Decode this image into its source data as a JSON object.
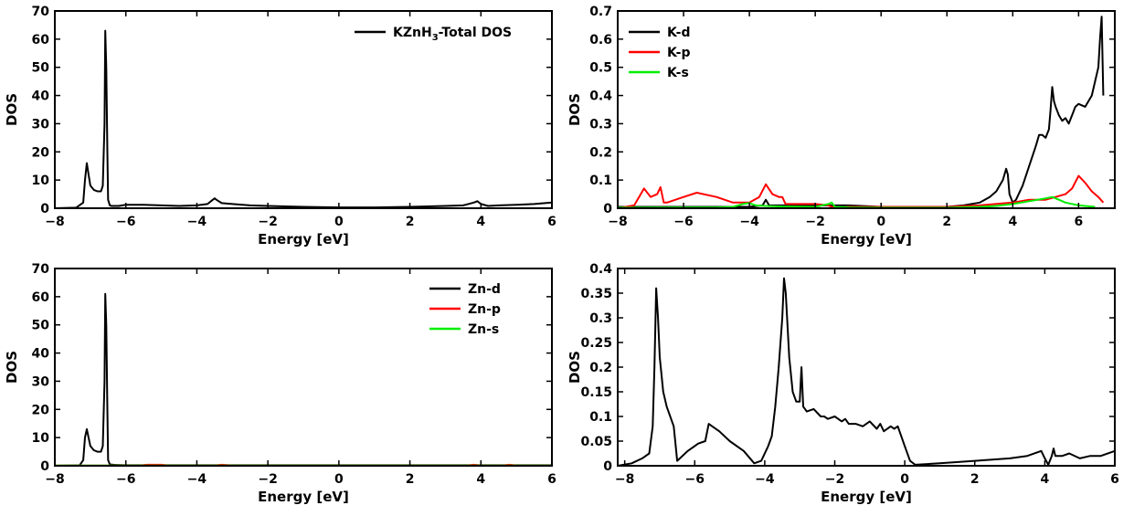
{
  "chart_data": [
    {
      "type": "line",
      "xlabel": "Energy [eV]",
      "ylabel": "DOS",
      "xlim": [
        -8,
        6
      ],
      "ylim": [
        0,
        70
      ],
      "xticks": [
        -8,
        -6,
        -4,
        -2,
        0,
        2,
        4,
        6
      ],
      "yticks": [
        0,
        10,
        20,
        30,
        40,
        50,
        60,
        70
      ],
      "legend_position": "top-right",
      "series": [
        {
          "name": "KZnH3-Total DOS",
          "color": "#000000",
          "x": [
            -8,
            -7.4,
            -7.2,
            -7.15,
            -7.1,
            -7.05,
            -7.0,
            -6.9,
            -6.8,
            -6.7,
            -6.65,
            -6.6,
            -6.58,
            -6.55,
            -6.52,
            -6.5,
            -6.45,
            -6.4,
            -6.2,
            -6.0,
            -5.5,
            -5.0,
            -4.5,
            -4.0,
            -3.7,
            -3.55,
            -3.5,
            -3.45,
            -3.3,
            -3.0,
            -2.5,
            -2.0,
            -1.0,
            0.0,
            1.0,
            2.0,
            3.0,
            3.5,
            3.8,
            3.9,
            4.0,
            4.2,
            4.5,
            5.0,
            5.5,
            6.0
          ],
          "y": [
            0,
            0.2,
            2,
            10,
            16,
            12,
            8,
            6.5,
            6,
            6,
            8,
            30,
            63,
            50,
            20,
            3,
            1,
            0.8,
            0.8,
            1.2,
            1.2,
            1.0,
            0.8,
            1.0,
            1.5,
            3,
            3.5,
            3,
            1.8,
            1.5,
            1.0,
            0.8,
            0.5,
            0.3,
            0.3,
            0.5,
            0.8,
            1.0,
            2.0,
            2.5,
            1.5,
            0.8,
            1.0,
            1.2,
            1.5,
            2.0
          ]
        }
      ]
    },
    {
      "type": "line",
      "xlabel": "Energy [eV]",
      "ylabel": "DOS",
      "xlim": [
        -8,
        7.1
      ],
      "ylim": [
        0,
        0.7
      ],
      "xticks": [
        -8,
        -6,
        -4,
        -2,
        0,
        2,
        4,
        6
      ],
      "yticks": [
        0,
        0.1,
        0.2,
        0.3,
        0.4,
        0.5,
        0.6,
        0.7
      ],
      "legend_position": "top-left",
      "series": [
        {
          "name": "K-d",
          "color": "#000000",
          "x": [
            -8,
            -6,
            -4,
            -3.6,
            -3.5,
            -3.4,
            -3,
            -2,
            -1,
            0,
            1,
            2,
            2.5,
            3,
            3.3,
            3.5,
            3.7,
            3.8,
            3.85,
            3.9,
            4.0,
            4.1,
            4.3,
            4.5,
            4.7,
            4.8,
            4.9,
            5.0,
            5.1,
            5.15,
            5.2,
            5.25,
            5.3,
            5.4,
            5.5,
            5.6,
            5.7,
            5.8,
            5.9,
            6.0,
            6.2,
            6.4,
            6.5,
            6.6,
            6.65,
            6.7,
            6.75
          ],
          "y": [
            0.005,
            0.005,
            0.005,
            0.01,
            0.03,
            0.01,
            0.01,
            0.01,
            0.01,
            0.005,
            0.005,
            0.005,
            0.01,
            0.02,
            0.04,
            0.06,
            0.1,
            0.14,
            0.12,
            0.05,
            0.02,
            0.03,
            0.08,
            0.15,
            0.22,
            0.26,
            0.26,
            0.25,
            0.28,
            0.35,
            0.43,
            0.38,
            0.36,
            0.33,
            0.31,
            0.32,
            0.3,
            0.33,
            0.36,
            0.37,
            0.36,
            0.4,
            0.45,
            0.5,
            0.6,
            0.68,
            0.4
          ]
        },
        {
          "name": "K-p",
          "color": "#ff0000",
          "x": [
            -8,
            -7.5,
            -7.3,
            -7.2,
            -7.0,
            -6.8,
            -6.7,
            -6.6,
            -6.5,
            -6.0,
            -5.6,
            -5.0,
            -4.5,
            -4.0,
            -3.7,
            -3.5,
            -3.3,
            -3.1,
            -3.0,
            -2.9,
            -2.5,
            -2.0,
            -1.6,
            -1.4,
            -1.0,
            0.0,
            1.0,
            2.0,
            3.0,
            4.0,
            4.5,
            5.0,
            5.3,
            5.6,
            5.8,
            6.0,
            6.2,
            6.4,
            6.6,
            6.75
          ],
          "y": [
            0.0,
            0.01,
            0.05,
            0.07,
            0.04,
            0.05,
            0.075,
            0.02,
            0.02,
            0.04,
            0.055,
            0.04,
            0.02,
            0.02,
            0.04,
            0.085,
            0.05,
            0.04,
            0.04,
            0.015,
            0.015,
            0.015,
            0.01,
            0.0,
            0.005,
            0.005,
            0.005,
            0.005,
            0.01,
            0.02,
            0.03,
            0.03,
            0.04,
            0.05,
            0.07,
            0.115,
            0.09,
            0.06,
            0.04,
            0.02
          ]
        },
        {
          "name": "K-s",
          "color": "#00ee00",
          "x": [
            -8,
            -6,
            -5,
            -4.5,
            -4.2,
            -4.0,
            -3.8,
            -3.5,
            -3.0,
            -2.0,
            -1.6,
            -1.5,
            -1.4,
            -1.0,
            0.0,
            1.0,
            2.0,
            3.0,
            3.5,
            4.0,
            4.5,
            5.0,
            5.2,
            5.4,
            5.6,
            6.0,
            6.5
          ],
          "y": [
            0.002,
            0.003,
            0.003,
            0.005,
            0.015,
            0.018,
            0.01,
            0.008,
            0.006,
            0.005,
            0.015,
            0.02,
            0.005,
            0.003,
            0.002,
            0.002,
            0.002,
            0.005,
            0.008,
            0.015,
            0.025,
            0.035,
            0.04,
            0.03,
            0.02,
            0.01,
            0.005
          ]
        }
      ]
    },
    {
      "type": "line",
      "xlabel": "Energy [eV]",
      "ylabel": "DOS",
      "xlim": [
        -8,
        6
      ],
      "ylim": [
        0,
        70
      ],
      "xticks": [
        -8,
        -6,
        -4,
        -2,
        0,
        2,
        4,
        6
      ],
      "yticks": [
        0,
        10,
        20,
        30,
        40,
        50,
        60,
        70
      ],
      "legend_position": "top-right",
      "series": [
        {
          "name": "Zn-d",
          "color": "#000000",
          "x": [
            -8,
            -7.3,
            -7.2,
            -7.15,
            -7.1,
            -7.05,
            -7.0,
            -6.9,
            -6.8,
            -6.7,
            -6.65,
            -6.6,
            -6.58,
            -6.55,
            -6.52,
            -6.5,
            -6.45,
            -6.3,
            -6.0,
            6.0
          ],
          "y": [
            0,
            0.2,
            2,
            10,
            13,
            10,
            7,
            5.5,
            5,
            5,
            7,
            30,
            61,
            50,
            20,
            2,
            0.5,
            0.3,
            0.2,
            0.2
          ]
        },
        {
          "name": "Zn-p",
          "color": "#ff0000",
          "x": [
            -8,
            -5.6,
            -5.4,
            -5.0,
            -4.8,
            -3.5,
            -3.3,
            -3.0,
            3.6,
            3.8,
            4.0,
            4.6,
            4.8,
            5.0,
            6.0
          ],
          "y": [
            0.1,
            0.1,
            0.35,
            0.35,
            0.1,
            0.1,
            0.35,
            0.1,
            0.1,
            0.35,
            0.1,
            0.1,
            0.35,
            0.1,
            0.1
          ]
        },
        {
          "name": "Zn-s",
          "color": "#00ee00",
          "x": [
            -8,
            -6,
            -4,
            -2,
            0,
            2,
            4,
            6
          ],
          "y": [
            0.05,
            0.05,
            0.05,
            0.05,
            0.05,
            0.05,
            0.05,
            0.05
          ]
        }
      ]
    },
    {
      "type": "line",
      "xlabel": "Energy  [eV]",
      "ylabel": "DOS",
      "xlim": [
        -8.2,
        6
      ],
      "ylim": [
        0,
        0.4
      ],
      "xticks": [
        -8,
        -6,
        -4,
        -2,
        0,
        2,
        4,
        6
      ],
      "yticks": [
        0,
        0.05,
        0.1,
        0.15,
        0.2,
        0.25,
        0.3,
        0.35,
        0.4
      ],
      "legend_position": "none",
      "series": [
        {
          "name": "",
          "color": "#000000",
          "x": [
            -8.2,
            -7.8,
            -7.5,
            -7.3,
            -7.2,
            -7.15,
            -7.1,
            -7.05,
            -7.0,
            -6.9,
            -6.8,
            -6.6,
            -6.5,
            -6.2,
            -5.9,
            -5.7,
            -5.6,
            -5.5,
            -5.3,
            -5.0,
            -4.6,
            -4.3,
            -4.1,
            -3.9,
            -3.8,
            -3.7,
            -3.6,
            -3.5,
            -3.45,
            -3.4,
            -3.3,
            -3.2,
            -3.1,
            -3.0,
            -2.95,
            -2.9,
            -2.8,
            -2.6,
            -2.4,
            -2.3,
            -2.2,
            -2.0,
            -1.8,
            -1.7,
            -1.6,
            -1.4,
            -1.2,
            -1.0,
            -0.8,
            -0.7,
            -0.6,
            -0.4,
            -0.3,
            -0.2,
            0.0,
            0.15,
            0.3,
            1.0,
            2.0,
            3.0,
            3.5,
            3.9,
            4.0,
            4.1,
            4.2,
            4.25,
            4.3,
            4.5,
            4.7,
            5.0,
            5.3,
            5.6,
            6.0
          ],
          "y": [
            0.0,
            0.005,
            0.015,
            0.025,
            0.08,
            0.2,
            0.36,
            0.3,
            0.22,
            0.15,
            0.12,
            0.08,
            0.01,
            0.03,
            0.045,
            0.05,
            0.085,
            0.08,
            0.07,
            0.05,
            0.03,
            0.005,
            0.01,
            0.04,
            0.06,
            0.12,
            0.2,
            0.3,
            0.38,
            0.35,
            0.22,
            0.15,
            0.13,
            0.13,
            0.2,
            0.12,
            0.11,
            0.115,
            0.1,
            0.1,
            0.095,
            0.1,
            0.09,
            0.095,
            0.085,
            0.085,
            0.08,
            0.09,
            0.075,
            0.085,
            0.07,
            0.08,
            0.075,
            0.08,
            0.04,
            0.01,
            0.002,
            0.005,
            0.01,
            0.015,
            0.02,
            0.03,
            0.015,
            0.002,
            0.02,
            0.035,
            0.02,
            0.02,
            0.025,
            0.015,
            0.02,
            0.02,
            0.03
          ]
        }
      ]
    }
  ]
}
